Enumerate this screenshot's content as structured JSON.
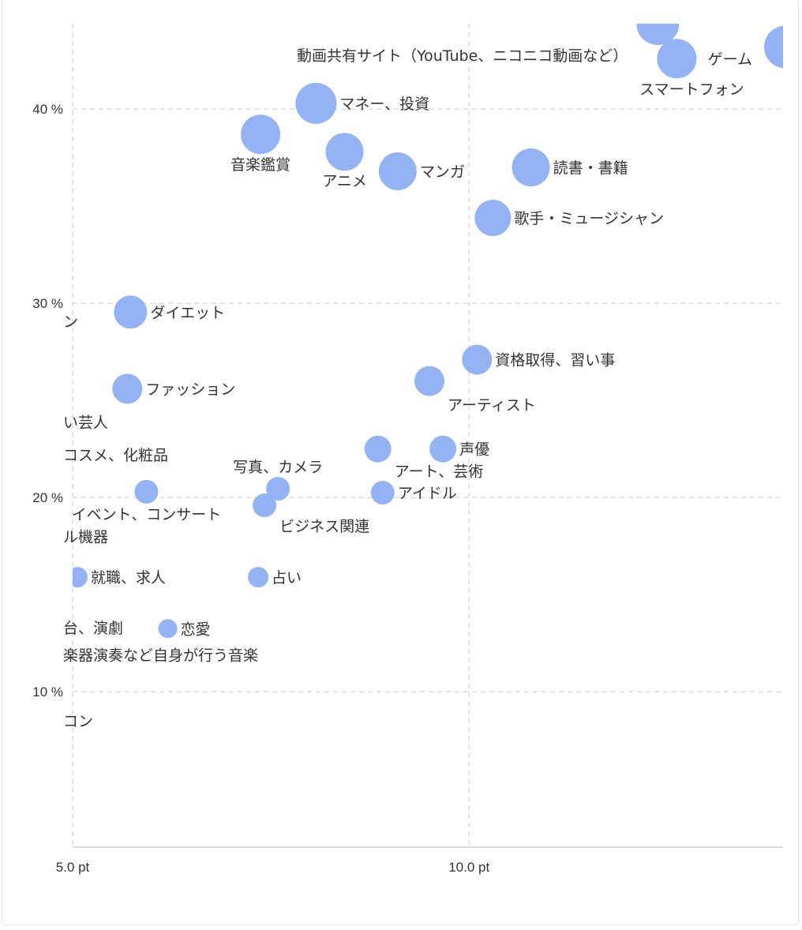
{
  "chart_data": {
    "type": "scatter",
    "variant": "bubble",
    "title": "",
    "xlabel": "",
    "ylabel": "",
    "xlim": [
      5.0,
      13.96
    ],
    "ylim": [
      2.0,
      44.4
    ],
    "x_ticks": [
      {
        "value": 5,
        "label": "5.0 pt"
      },
      {
        "value": 10,
        "label": "10.0 pt"
      }
    ],
    "y_ticks": [
      {
        "value": 10,
        "label": "10 %"
      },
      {
        "value": 20,
        "label": "20 %"
      },
      {
        "value": 30,
        "label": "30 %"
      },
      {
        "value": 40,
        "label": "40 %"
      }
    ],
    "grid": true,
    "bubble_color": "#94b3f5",
    "points": [
      {
        "label": "動画共有サイト（YouTube、ニコニコ動画など）",
        "x": 12.38,
        "y": 44.4,
        "size": 27,
        "label_pos": "left-below"
      },
      {
        "label": "スマートフォン",
        "x": 12.62,
        "y": 42.6,
        "size": 25,
        "label_pos": "below"
      },
      {
        "label": "ゲーム",
        "x": 13.99,
        "y": 43.2,
        "size": 27,
        "label_pos": "left"
      },
      {
        "label": "マネー、投資",
        "x": 8.07,
        "y": 40.3,
        "size": 26,
        "label_pos": "right"
      },
      {
        "label": "音楽鑑賞",
        "x": 7.37,
        "y": 38.7,
        "size": 25,
        "label_pos": "below"
      },
      {
        "label": "アニメ",
        "x": 8.43,
        "y": 37.8,
        "size": 24,
        "label_pos": "below-left"
      },
      {
        "label": "マンガ",
        "x": 9.1,
        "y": 36.8,
        "size": 24,
        "label_pos": "right"
      },
      {
        "label": "読書・書籍",
        "x": 10.78,
        "y": 37.0,
        "size": 24,
        "label_pos": "right"
      },
      {
        "label": "歌手・ミュージシャン",
        "x": 10.3,
        "y": 34.4,
        "size": 23,
        "label_pos": "right"
      },
      {
        "label": "ダイエット",
        "x": 5.73,
        "y": 29.55,
        "size": 21,
        "label_pos": "right"
      },
      {
        "label": "資格取得、習い事",
        "x": 10.1,
        "y": 27.1,
        "size": 19,
        "label_pos": "right"
      },
      {
        "label": "アーティスト",
        "x": 9.5,
        "y": 26.0,
        "size": 19,
        "label_pos": "below-right"
      },
      {
        "label": "ファッション",
        "x": 5.69,
        "y": 25.6,
        "size": 19,
        "label_pos": "right"
      },
      {
        "label": "アート、芸術",
        "x": 8.85,
        "y": 22.5,
        "size": 17,
        "label_pos": "below-right"
      },
      {
        "label": "声優",
        "x": 9.67,
        "y": 22.5,
        "size": 17,
        "label_pos": "right"
      },
      {
        "label": "写真、カメラ",
        "x": 7.59,
        "y": 20.45,
        "size": 15,
        "label_pos": "above"
      },
      {
        "label": "イベント、コンサート",
        "x": 5.93,
        "y": 20.3,
        "size": 15,
        "label_pos": "below"
      },
      {
        "label": "ビジネス関連",
        "x": 7.42,
        "y": 19.6,
        "size": 15,
        "label_pos": "below-right"
      },
      {
        "label": "アイドル",
        "x": 8.91,
        "y": 20.25,
        "size": 15,
        "label_pos": "right"
      },
      {
        "label": "就職、求人",
        "x": 5.06,
        "y": 15.9,
        "size": 13,
        "label_pos": "right"
      },
      {
        "label": "占い",
        "x": 7.34,
        "y": 15.9,
        "size": 13,
        "label_pos": "right"
      },
      {
        "label": "恋愛",
        "x": 6.2,
        "y": 13.25,
        "size": 12,
        "label_pos": "right"
      }
    ],
    "clipped_labels": [
      {
        "text": "ン",
        "y": 29.07
      },
      {
        "text": "い芸人",
        "y": 23.9
      },
      {
        "text": "コスメ、化粧品",
        "y": 22.2
      },
      {
        "text": "ル機器",
        "y": 18.0
      },
      {
        "text": "台、演劇",
        "y": 13.3
      },
      {
        "text": "楽器演奏など自身が行う音楽",
        "y": 11.9
      },
      {
        "text": "コン",
        "y": 8.5
      }
    ]
  }
}
